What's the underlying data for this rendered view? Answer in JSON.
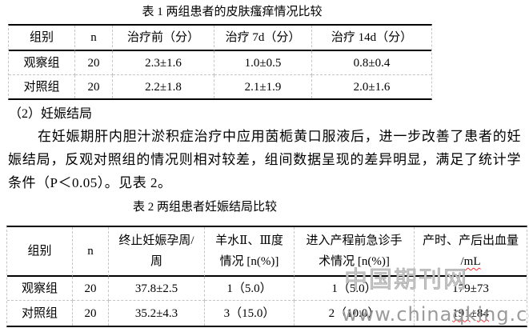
{
  "colors": {
    "ink": "#000000",
    "dashed_gridline": "#c4c4c4",
    "spellcheck_squiggle": "#ff2a2a",
    "watermark_brand": "#c9c9c9",
    "watermark_url": "#9b9b9b"
  },
  "table1": {
    "title": "表 1 两组患者的皮肤瘙痒情况比较",
    "headers": [
      "组别",
      "n",
      "治疗前（分）",
      "治疗 7d（分）",
      "治疗 14d（分）"
    ],
    "rows": [
      [
        "观察组",
        "20",
        "2.3±1.6",
        "1.0±0.5",
        "0.8±0.4"
      ],
      [
        "对照组",
        "20",
        "2.2±1.8",
        "2.1±1.9",
        "2.0±1.6"
      ]
    ]
  },
  "section": {
    "heading": "（2）妊娠结局",
    "body": "在妊娠期肝内胆汁淤积症治疗中应用茵栀黄口服液后，进一步改善了患者的妊娠结局，反观对照组的情况则相对较差，组间数据呈现的差异明显，满足了统计学条件（P＜0.05）。见表 2。"
  },
  "table2": {
    "title": "表 2 两组患者妊娠结局比较",
    "headers": [
      {
        "line1": "组别"
      },
      {
        "line1": "n"
      },
      {
        "line1": "终止妊娠孕周/",
        "line2": "周"
      },
      {
        "line1": "羊水Ⅱ、Ⅲ度",
        "line2": "情况 [n(%)]"
      },
      {
        "line1": "进入产程前急诊手",
        "line2": "术情况 [n(%)]"
      },
      {
        "line1": "产时、产后出血量",
        "line2_prefix": "/",
        "line2_unit": "mL"
      }
    ],
    "rows": [
      {
        "cells": [
          "观察组",
          "20",
          "37.8±2.5",
          "1（5.0）",
          "1（5.0）"
        ],
        "bleed_plain": "179±73"
      },
      {
        "cells": [
          "对照组",
          "20",
          "35.2±4.3",
          "3（15.0）",
          "2（10.0）"
        ],
        "bleed_seg1": "191",
        "bleed_pm": "±",
        "bleed_seg2": "84"
      }
    ]
  },
  "watermark": {
    "brand": "中国期刊网",
    "url": "www.chinaqking.com"
  }
}
